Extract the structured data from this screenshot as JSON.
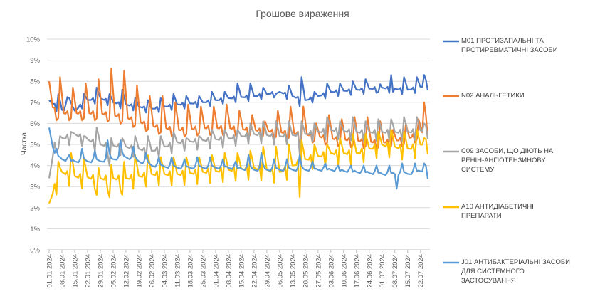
{
  "chart_data": {
    "type": "line",
    "title": "Грошове вираження",
    "xlabel": "",
    "ylabel": "Частка",
    "ylim": [
      0,
      10
    ],
    "y_ticks": [
      "0%",
      "1%",
      "2%",
      "3%",
      "4%",
      "5%",
      "6%",
      "7%",
      "8%",
      "9%",
      "10%"
    ],
    "x_ticks": [
      "01.01.2024",
      "08.01.2024",
      "15.01.2024",
      "22.01.2024",
      "29.01.2024",
      "05.02.2024",
      "12.02.2024",
      "19.02.2024",
      "26.02.2024",
      "04.03.2024",
      "11.03.2024",
      "18.03.2024",
      "25.03.2024",
      "01.04.2024",
      "08.04.2024",
      "15.04.2024",
      "22.04.2024",
      "29.04.2024",
      "06.05.2024",
      "13.05.2024",
      "20.05.2024",
      "27.05.2024",
      "03.06.2024",
      "10.06.2024",
      "17.06.2024",
      "24.06.2024",
      "01.07.2024",
      "08.07.2024",
      "15.07.2024",
      "22.07.2024"
    ],
    "n_days": 208,
    "grid": true,
    "legend_position": "right",
    "series": [
      {
        "name": "M01 ПРОТИЗАПАЛЬНІ ТА ПРОТИРЕВМАТИЧНІ ЗАСОБИ",
        "color": "#4472C4",
        "anchors": [
          [
            0,
            7.1
          ],
          [
            4,
            6.8
          ],
          [
            8,
            6.6
          ],
          [
            10,
            7.2
          ],
          [
            14,
            6.6
          ],
          [
            20,
            7.1
          ],
          [
            28,
            7.2
          ],
          [
            35,
            7.0
          ],
          [
            42,
            6.9
          ],
          [
            56,
            6.7
          ],
          [
            70,
            6.9
          ],
          [
            84,
            7.0
          ],
          [
            98,
            7.2
          ],
          [
            112,
            7.3
          ],
          [
            126,
            7.5
          ],
          [
            140,
            7.1
          ],
          [
            154,
            7.5
          ],
          [
            168,
            7.6
          ],
          [
            182,
            7.7
          ],
          [
            196,
            7.6
          ],
          [
            207,
            7.8
          ]
        ],
        "peaks": [
          [
            5,
            7.4
          ],
          [
            11,
            7.2
          ],
          [
            19,
            7.4
          ],
          [
            26,
            7.7
          ],
          [
            33,
            7.4
          ],
          [
            40,
            7.6
          ],
          [
            47,
            7.2
          ],
          [
            54,
            7.1
          ],
          [
            61,
            7.2
          ],
          [
            68,
            7.4
          ],
          [
            75,
            7.3
          ],
          [
            82,
            7.3
          ],
          [
            89,
            7.5
          ],
          [
            96,
            7.5
          ],
          [
            103,
            7.9
          ],
          [
            110,
            7.9
          ],
          [
            117,
            7.7
          ],
          [
            124,
            7.4
          ],
          [
            131,
            7.8
          ],
          [
            138,
            8.2
          ],
          [
            145,
            7.5
          ],
          [
            152,
            7.9
          ],
          [
            159,
            7.9
          ],
          [
            166,
            8.0
          ],
          [
            173,
            8.1
          ],
          [
            180,
            8.0
          ],
          [
            187,
            8.3
          ],
          [
            194,
            8.2
          ],
          [
            201,
            8.2
          ],
          [
            205,
            8.3
          ]
        ],
        "dips": [
          [
            137,
            6.8
          ],
          [
            180,
            7.5
          ],
          [
            188,
            7.5
          ]
        ],
        "amp": 0.45
      },
      {
        "name": "N02 АНАЛЬГЕТИКИ",
        "color": "#ED7D31",
        "anchors": [
          [
            0,
            8.0
          ],
          [
            2,
            6.8
          ],
          [
            4,
            6.5
          ],
          [
            14,
            6.5
          ],
          [
            28,
            6.5
          ],
          [
            42,
            6.3
          ],
          [
            56,
            5.9
          ],
          [
            70,
            5.7
          ],
          [
            84,
            5.8
          ],
          [
            98,
            5.8
          ],
          [
            112,
            5.7
          ],
          [
            126,
            5.6
          ],
          [
            140,
            5.5
          ],
          [
            154,
            5.3
          ],
          [
            168,
            5.2
          ],
          [
            182,
            5.1
          ],
          [
            196,
            5.3
          ],
          [
            207,
            5.7
          ]
        ],
        "peaks": [
          [
            6,
            8.2
          ],
          [
            13,
            7.7
          ],
          [
            20,
            7.9
          ],
          [
            27,
            8.1
          ],
          [
            34,
            8.6
          ],
          [
            41,
            8.5
          ],
          [
            48,
            7.8
          ],
          [
            55,
            7.3
          ],
          [
            62,
            7.3
          ],
          [
            69,
            7.0
          ],
          [
            76,
            6.9
          ],
          [
            83,
            6.8
          ],
          [
            90,
            6.8
          ],
          [
            97,
            6.9
          ],
          [
            104,
            6.6
          ],
          [
            111,
            6.4
          ],
          [
            118,
            6.1
          ],
          [
            125,
            6.6
          ],
          [
            132,
            6.8
          ],
          [
            139,
            6.8
          ],
          [
            146,
            6.0
          ],
          [
            153,
            6.4
          ],
          [
            160,
            6.2
          ],
          [
            167,
            6.3
          ],
          [
            174,
            6.3
          ],
          [
            181,
            6.1
          ],
          [
            188,
            5.7
          ],
          [
            195,
            6.0
          ],
          [
            202,
            6.2
          ],
          [
            205,
            7.0
          ]
        ],
        "dips": [
          [
            137,
            4.8
          ]
        ],
        "amp": 0.7
      },
      {
        "name": "C09 ЗАСОБИ, ЩО ДІЮТЬ НА РЕНІН-АНГІОТЕНЗИНОВУ СИСТЕМУ",
        "color": "#A5A5A5",
        "anchors": [
          [
            0,
            3.4
          ],
          [
            3,
            5.0
          ],
          [
            8,
            5.3
          ],
          [
            14,
            5.5
          ],
          [
            28,
            5.0
          ],
          [
            42,
            4.9
          ],
          [
            56,
            4.7
          ],
          [
            70,
            5.1
          ],
          [
            84,
            5.2
          ],
          [
            98,
            5.3
          ],
          [
            112,
            5.5
          ],
          [
            126,
            5.4
          ],
          [
            140,
            5.5
          ],
          [
            154,
            5.7
          ],
          [
            168,
            5.6
          ],
          [
            182,
            5.6
          ],
          [
            196,
            5.6
          ],
          [
            207,
            5.7
          ]
        ],
        "peaks": [
          [
            6,
            5.4
          ],
          [
            12,
            5.6
          ],
          [
            19,
            5.4
          ],
          [
            26,
            5.8
          ],
          [
            33,
            5.6
          ],
          [
            40,
            5.3
          ],
          [
            47,
            5.4
          ],
          [
            54,
            5.4
          ],
          [
            61,
            5.4
          ],
          [
            68,
            5.6
          ],
          [
            75,
            5.3
          ],
          [
            82,
            5.4
          ],
          [
            89,
            5.7
          ],
          [
            96,
            5.7
          ],
          [
            103,
            5.7
          ],
          [
            110,
            6.0
          ],
          [
            117,
            6.1
          ],
          [
            124,
            6.1
          ],
          [
            131,
            6.1
          ],
          [
            138,
            6.1
          ],
          [
            145,
            6.0
          ],
          [
            152,
            6.3
          ],
          [
            159,
            6.1
          ],
          [
            166,
            6.3
          ],
          [
            173,
            6.1
          ],
          [
            180,
            6.2
          ],
          [
            187,
            6.2
          ],
          [
            194,
            6.3
          ],
          [
            201,
            6.3
          ],
          [
            205,
            6.0
          ]
        ],
        "dips": [
          [
            137,
            4.5
          ],
          [
            33,
            4.0
          ]
        ],
        "amp": 0.85
      },
      {
        "name": "A10 АНТИДІАБЕТИЧНІ ПРЕПАРАТИ",
        "color": "#FFC000",
        "anchors": [
          [
            0,
            2.2
          ],
          [
            3,
            3.0
          ],
          [
            7,
            3.7
          ],
          [
            14,
            3.5
          ],
          [
            28,
            3.4
          ],
          [
            42,
            3.4
          ],
          [
            56,
            3.6
          ],
          [
            70,
            3.6
          ],
          [
            84,
            3.7
          ],
          [
            98,
            3.8
          ],
          [
            112,
            3.9
          ],
          [
            126,
            3.7
          ],
          [
            140,
            4.3
          ],
          [
            154,
            4.6
          ],
          [
            168,
            4.6
          ],
          [
            182,
            5.0
          ],
          [
            196,
            4.8
          ],
          [
            207,
            5.1
          ]
        ],
        "peaks": [
          [
            5,
            4.2
          ],
          [
            12,
            4.6
          ],
          [
            19,
            4.3
          ],
          [
            26,
            4.3
          ],
          [
            33,
            4.6
          ],
          [
            40,
            4.9
          ],
          [
            47,
            4.5
          ],
          [
            54,
            4.5
          ],
          [
            61,
            4.4
          ],
          [
            68,
            4.4
          ],
          [
            75,
            4.4
          ],
          [
            82,
            4.4
          ],
          [
            89,
            4.5
          ],
          [
            96,
            4.6
          ],
          [
            103,
            4.6
          ],
          [
            110,
            4.7
          ],
          [
            117,
            4.9
          ],
          [
            124,
            4.9
          ],
          [
            131,
            5.0
          ],
          [
            138,
            5.2
          ],
          [
            145,
            5.0
          ],
          [
            152,
            5.0
          ],
          [
            159,
            5.3
          ],
          [
            166,
            5.5
          ],
          [
            173,
            5.5
          ],
          [
            180,
            5.6
          ],
          [
            187,
            5.7
          ],
          [
            194,
            5.6
          ],
          [
            201,
            5.7
          ],
          [
            205,
            5.3
          ]
        ],
        "dips": [
          [
            137,
            2.5
          ],
          [
            26,
            2.6
          ],
          [
            33,
            2.5
          ],
          [
            40,
            2.6
          ]
        ],
        "amp": 1.1
      },
      {
        "name": "J01 АНТИБАКТЕРІАЛЬНІ ЗАСОБИ ДЛЯ СИСТЕМНОГО ЗАСТОСУВАННЯ",
        "color": "#5B9BD5",
        "anchors": [
          [
            0,
            5.8
          ],
          [
            3,
            4.5
          ],
          [
            7,
            4.3
          ],
          [
            14,
            4.2
          ],
          [
            28,
            4.2
          ],
          [
            42,
            4.4
          ],
          [
            56,
            4.0
          ],
          [
            70,
            3.9
          ],
          [
            84,
            3.9
          ],
          [
            98,
            3.9
          ],
          [
            112,
            3.8
          ],
          [
            126,
            3.8
          ],
          [
            140,
            3.8
          ],
          [
            154,
            3.8
          ],
          [
            168,
            3.7
          ],
          [
            182,
            3.6
          ],
          [
            196,
            3.6
          ],
          [
            207,
            3.8
          ]
        ],
        "peaks": [
          [
            4,
            4.8
          ],
          [
            11,
            4.5
          ],
          [
            18,
            4.8
          ],
          [
            25,
            4.7
          ],
          [
            32,
            5.2
          ],
          [
            39,
            5.2
          ],
          [
            46,
            4.9
          ],
          [
            53,
            4.6
          ],
          [
            60,
            4.4
          ],
          [
            67,
            4.4
          ],
          [
            74,
            4.3
          ],
          [
            81,
            4.4
          ],
          [
            88,
            4.4
          ],
          [
            95,
            4.3
          ],
          [
            102,
            4.2
          ],
          [
            109,
            4.5
          ],
          [
            116,
            4.6
          ],
          [
            123,
            4.3
          ],
          [
            130,
            4.3
          ],
          [
            137,
            4.5
          ],
          [
            144,
            4.2
          ],
          [
            151,
            4.1
          ],
          [
            158,
            4.0
          ],
          [
            165,
            4.0
          ],
          [
            172,
            4.0
          ],
          [
            179,
            4.0
          ],
          [
            186,
            4.0
          ],
          [
            193,
            4.1
          ],
          [
            200,
            4.1
          ],
          [
            205,
            4.1
          ]
        ],
        "dips": [
          [
            190,
            2.9
          ]
        ],
        "amp": 0.85
      }
    ]
  }
}
